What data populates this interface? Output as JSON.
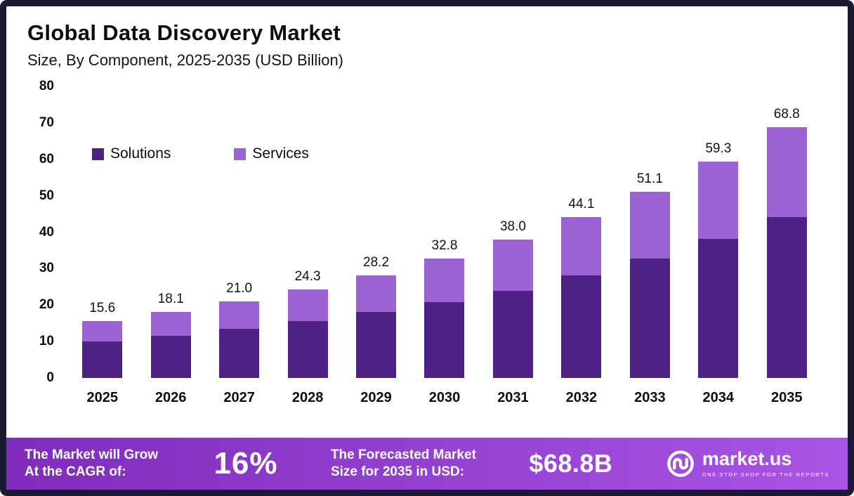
{
  "header": {
    "title": "Global Data Discovery Market",
    "subtitle": "Size, By Component, 2025-2035 (USD Billion)"
  },
  "chart_data": {
    "type": "bar",
    "stacked": true,
    "title": "Global Data Discovery Market",
    "subtitle": "Size, By Component, 2025-2035 (USD Billion)",
    "xlabel": "",
    "ylabel": "USD Billion",
    "categories": [
      "2025",
      "2026",
      "2027",
      "2028",
      "2029",
      "2030",
      "2031",
      "2032",
      "2033",
      "2034",
      "2035"
    ],
    "series": [
      {
        "name": "Solutions",
        "color": "#4e2185",
        "values": [
          10.0,
          11.6,
          13.5,
          15.7,
          18.2,
          20.9,
          24.0,
          28.2,
          32.7,
          38.1,
          44.1
        ]
      },
      {
        "name": "Services",
        "color": "#9d62d4",
        "values": [
          5.6,
          6.5,
          7.5,
          8.6,
          10.0,
          11.9,
          14.0,
          15.9,
          18.4,
          21.2,
          24.7
        ]
      }
    ],
    "totals": [
      15.6,
      18.1,
      21.0,
      24.3,
      28.2,
      32.8,
      38.0,
      44.1,
      51.1,
      59.3,
      68.8
    ],
    "total_labels": [
      "15.6",
      "18.1",
      "21.0",
      "24.3",
      "28.2",
      "32.8",
      "38.0",
      "44.1",
      "51.1",
      "59.3",
      "68.8"
    ],
    "ylim": [
      0,
      80
    ],
    "yticks": [
      0,
      10,
      20,
      30,
      40,
      50,
      60,
      70,
      80
    ],
    "grid": false,
    "legend_position": "upper-left-inside"
  },
  "footer": {
    "left": {
      "line1": "The Market will Grow",
      "line2": "At the CAGR of:",
      "value": "16%"
    },
    "right": {
      "line1": "The Forecasted Market",
      "line2": "Size for 2035 in USD:",
      "value": "$68.8B"
    },
    "brand": {
      "name": "market.us",
      "tagline": "ONE STOP SHOP FOR THE REPORTS"
    }
  },
  "colors": {
    "solutions": "#4e2185",
    "services": "#9d62d4",
    "banner_gradient_start": "#7f2cbd",
    "banner_gradient_end": "#a855e6",
    "frame_border": "#1a1a35",
    "text": "#0d0d0d"
  }
}
